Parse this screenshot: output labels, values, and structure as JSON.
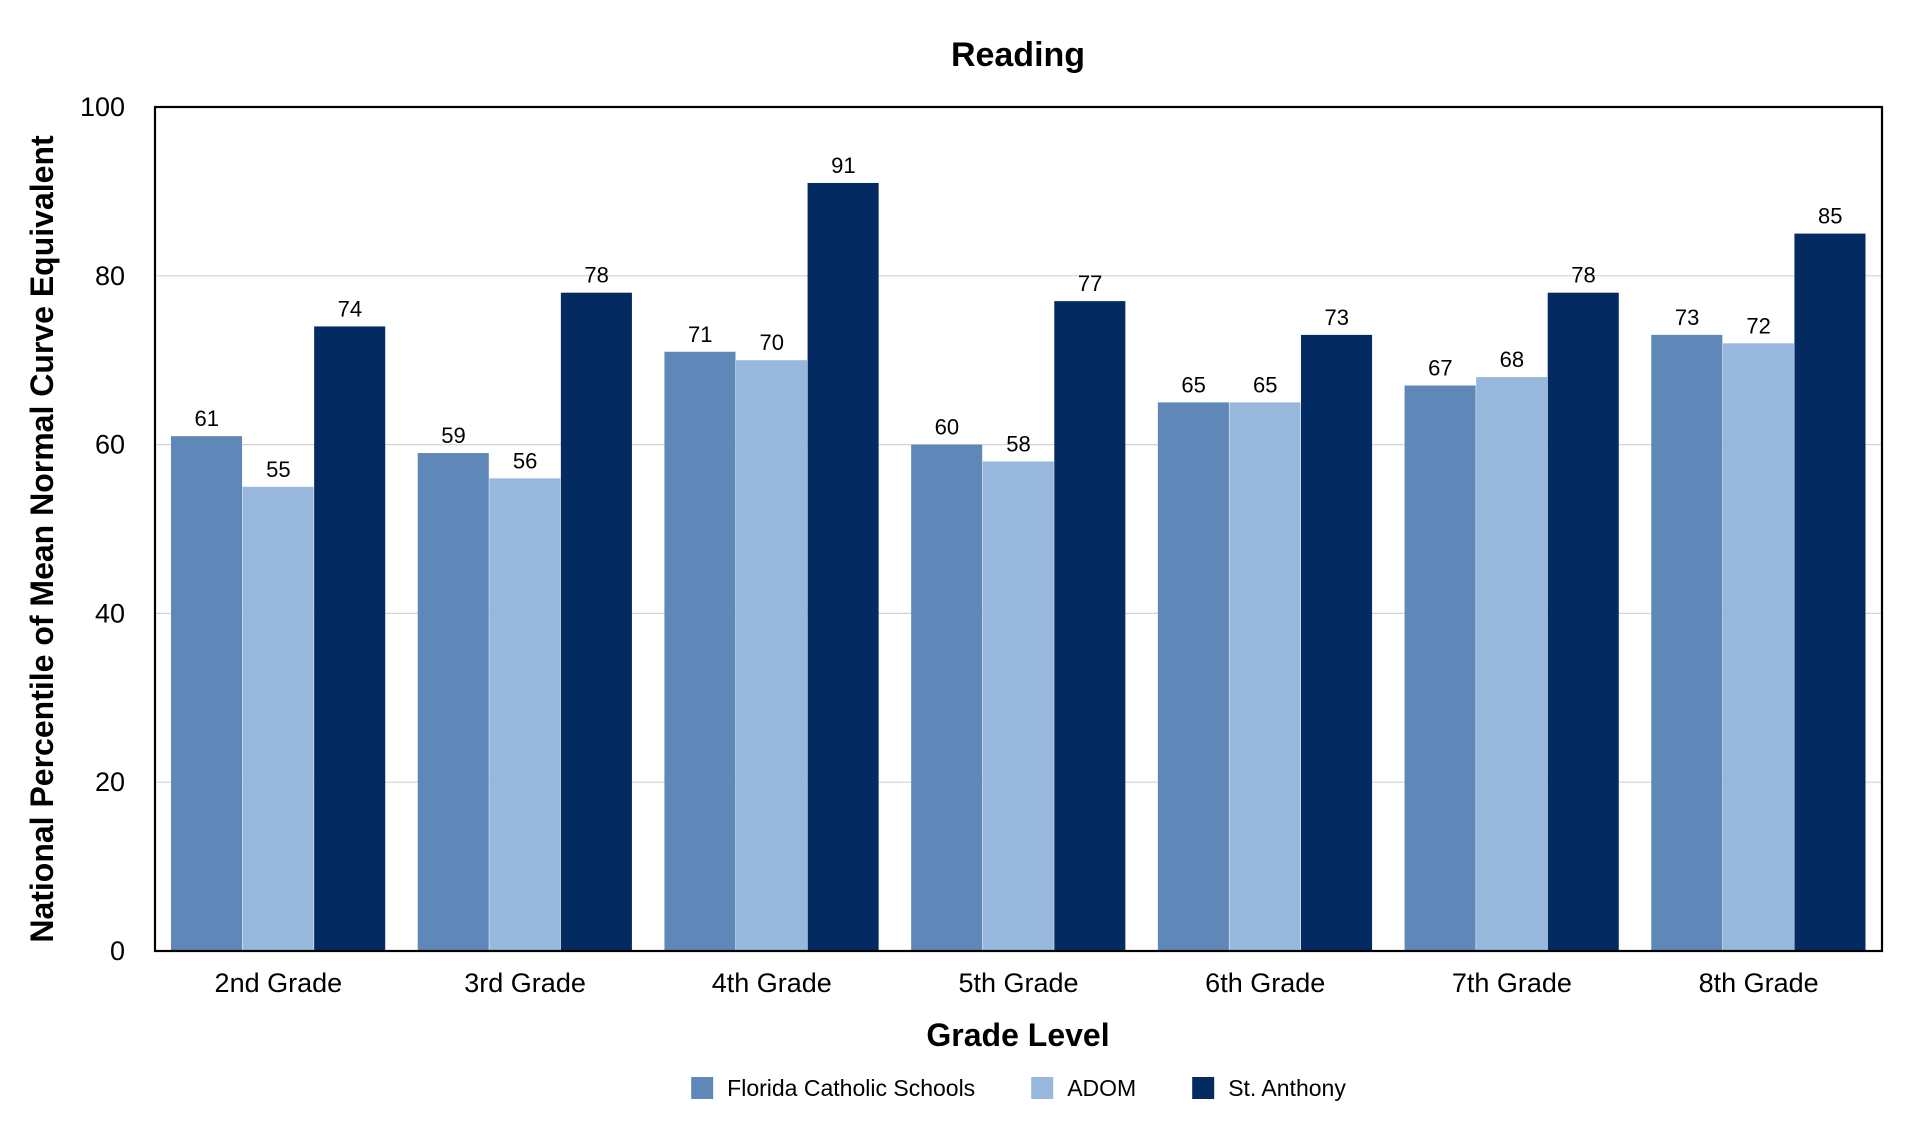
{
  "chart_data": {
    "type": "bar",
    "title": "Reading",
    "xlabel": "Grade Level",
    "ylabel": "National Percentile of Mean Normal Curve Equivalent",
    "ylim": [
      0,
      100
    ],
    "yticks": [
      0,
      20,
      40,
      60,
      80,
      100
    ],
    "grid": true,
    "legend_position": "bottom",
    "categories": [
      "2nd Grade",
      "3rd Grade",
      "4th Grade",
      "5th Grade",
      "6th Grade",
      "7th Grade",
      "8th Grade"
    ],
    "series": [
      {
        "name": "Florida Catholic Schools",
        "color": "#5f87b8",
        "values": [
          61,
          59,
          71,
          60,
          65,
          67,
          73
        ]
      },
      {
        "name": "ADOM",
        "color": "#97b8dc",
        "values": [
          55,
          56,
          70,
          58,
          65,
          68,
          72
        ]
      },
      {
        "name": "St. Anthony",
        "color": "#042a62",
        "values": [
          74,
          78,
          91,
          77,
          73,
          78,
          85
        ]
      }
    ]
  }
}
